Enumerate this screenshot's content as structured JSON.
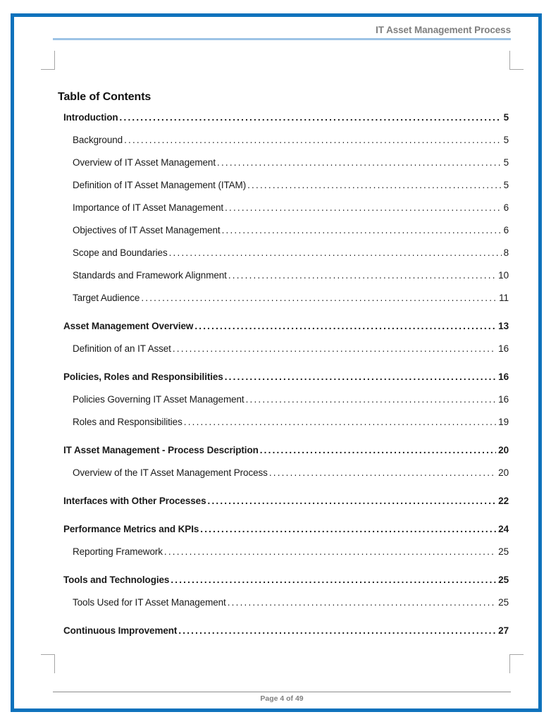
{
  "header": {
    "title": "IT Asset Management Process"
  },
  "toc": {
    "heading": "Table of Contents",
    "entries": [
      {
        "label": "Introduction",
        "page": "5",
        "level": 1
      },
      {
        "label": "Background",
        "page": "5",
        "level": 2
      },
      {
        "label": "Overview of IT Asset Management",
        "page": "5",
        "level": 2
      },
      {
        "label": "Definition of IT Asset Management (ITAM)",
        "page": "5",
        "level": 2
      },
      {
        "label": "Importance of IT Asset Management",
        "page": "6",
        "level": 2
      },
      {
        "label": "Objectives of IT Asset Management",
        "page": "6",
        "level": 2
      },
      {
        "label": "Scope and Boundaries",
        "page": "8",
        "level": 2
      },
      {
        "label": "Standards and Framework Alignment",
        "page": "10",
        "level": 2
      },
      {
        "label": "Target Audience",
        "page": "11",
        "level": 2
      },
      {
        "label": "Asset Management Overview",
        "page": "13",
        "level": 1
      },
      {
        "label": "Definition of an IT Asset",
        "page": "16",
        "level": 2
      },
      {
        "label": "Policies, Roles and Responsibilities",
        "page": "16",
        "level": 1
      },
      {
        "label": "Policies Governing IT Asset Management",
        "page": "16",
        "level": 2
      },
      {
        "label": "Roles and Responsibilities",
        "page": "19",
        "level": 2
      },
      {
        "label": "IT Asset Management - Process Description",
        "page": "20",
        "level": 1
      },
      {
        "label": "Overview of the IT Asset Management Process",
        "page": "20",
        "level": 2
      },
      {
        "label": "Interfaces with Other Processes",
        "page": "22",
        "level": 1
      },
      {
        "label": "Performance Metrics and KPIs",
        "page": "24",
        "level": 1
      },
      {
        "label": "Reporting Framework",
        "page": "25",
        "level": 2
      },
      {
        "label": "Tools and Technologies",
        "page": "25",
        "level": 1
      },
      {
        "label": "Tools Used for IT Asset Management",
        "page": "25",
        "level": 2
      },
      {
        "label": "Continuous Improvement",
        "page": "27",
        "level": 1
      }
    ]
  },
  "footer": {
    "page_label": "Page 4 of 49"
  },
  "colors": {
    "border_blue": "#0E72BC",
    "header_rule_lightblue": "#9DC3E6",
    "gray_text": "#7F7F7F",
    "crop_mark_gray": "#A6A6A6",
    "body_text": "#1A1A1A"
  }
}
